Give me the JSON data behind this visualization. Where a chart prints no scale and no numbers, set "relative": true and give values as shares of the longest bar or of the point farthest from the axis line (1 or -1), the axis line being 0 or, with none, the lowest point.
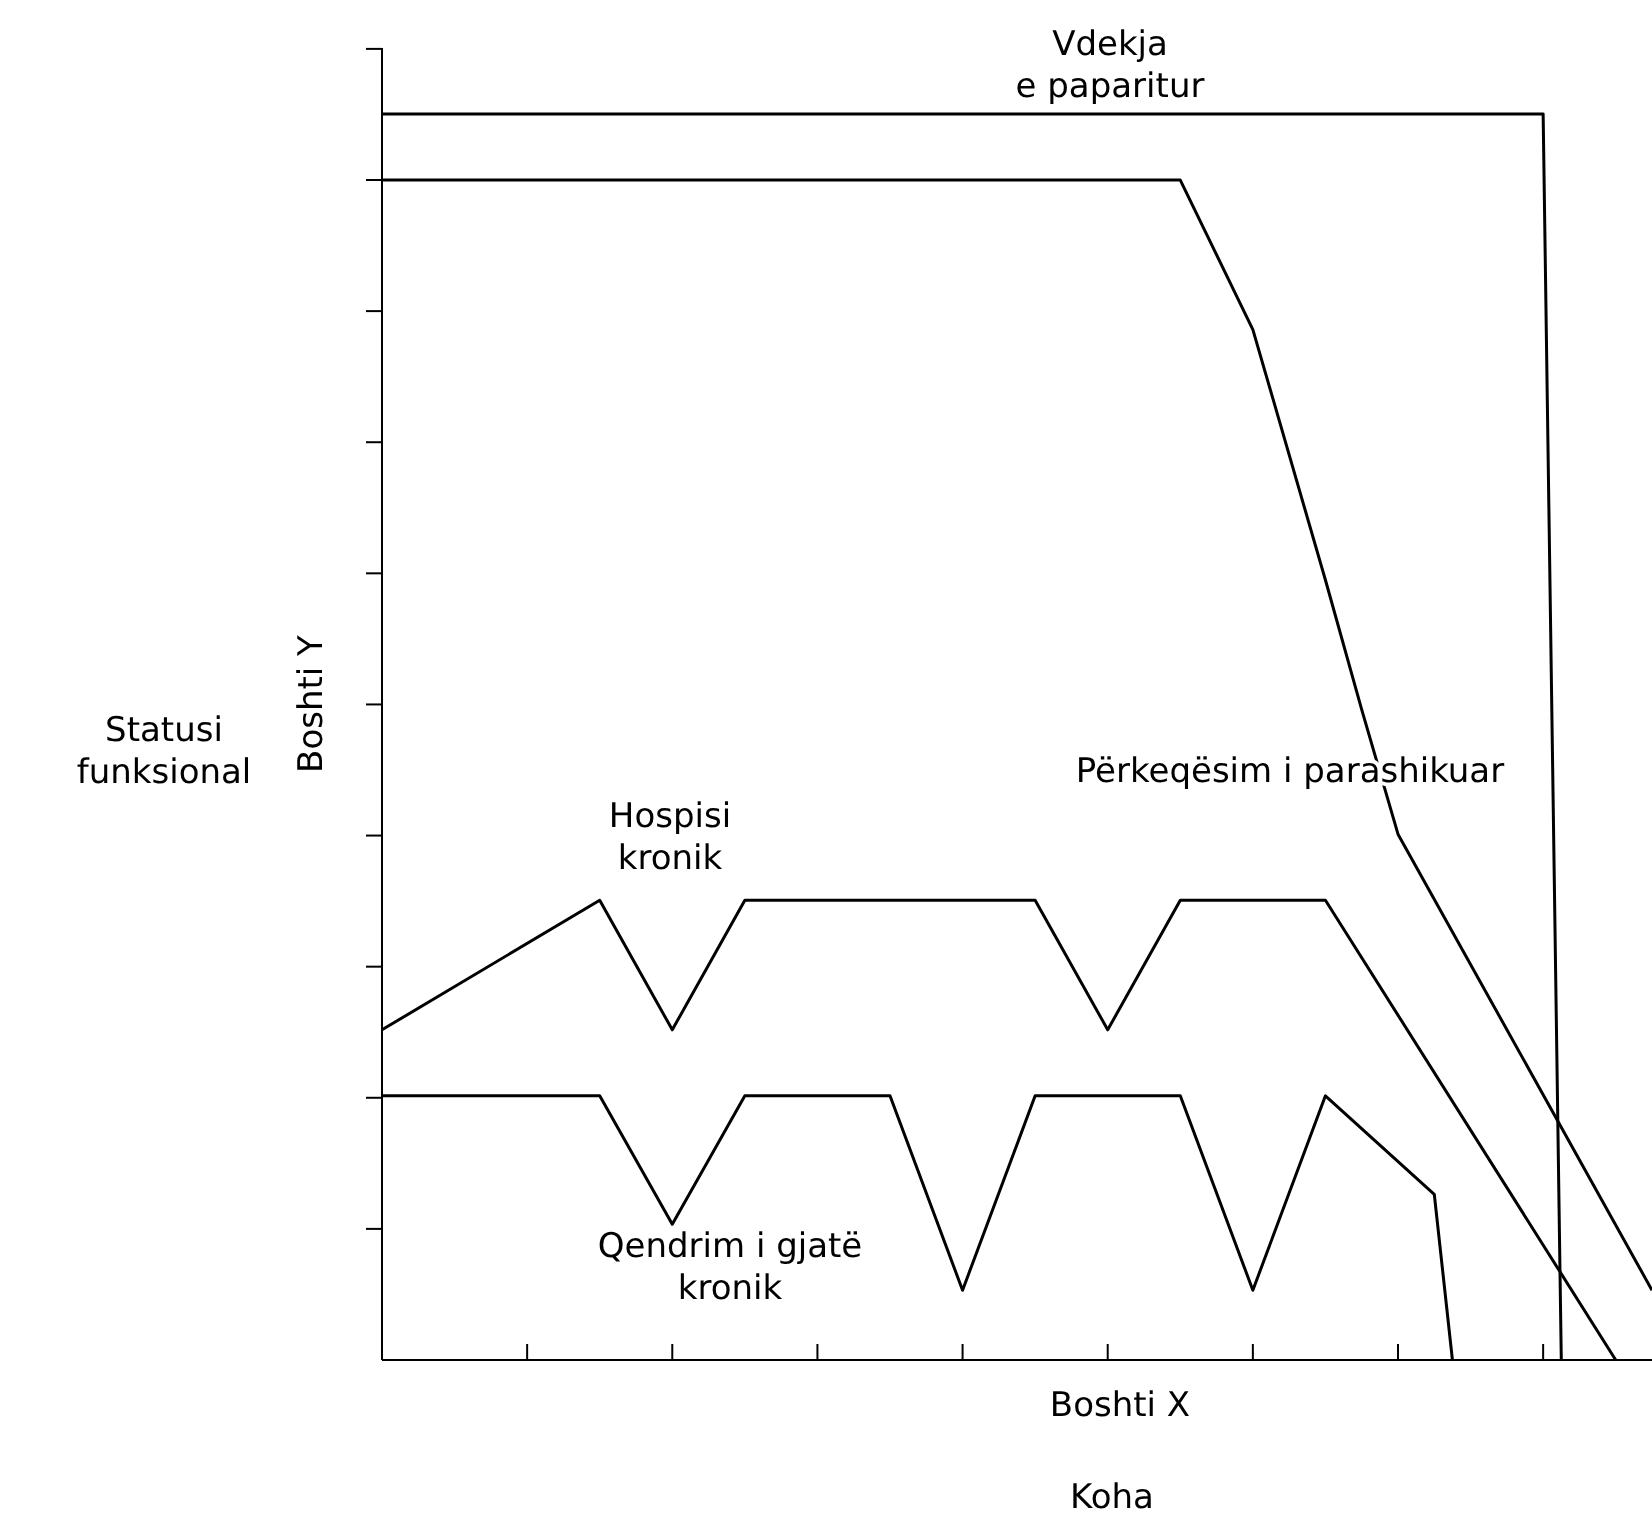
{
  "chart_data": {
    "type": "line",
    "relative": true,
    "xlabel": "Boshti X",
    "ylabel": "Boshti Y",
    "grid": false,
    "marker": "none",
    "line_style": "solid",
    "categories": [
      null,
      null,
      null,
      null,
      null,
      null,
      null,
      null,
      null,
      null,
      null,
      null,
      null,
      null,
      null,
      null,
      null,
      null,
      null,
      null,
      null,
      null,
      null,
      null,
      null,
      null,
      null,
      null,
      null,
      null,
      null,
      null,
      null,
      null,
      null,
      null,
      null,
      null,
      null,
      null,
      null,
      null,
      null,
      null,
      null,
      null,
      null,
      null,
      null,
      null,
      null,
      null,
      null,
      null,
      null,
      null,
      null,
      null,
      null,
      null,
      null,
      null,
      null,
      null,
      null,
      null,
      null,
      null,
      null,
      null,
      null
    ],
    "series": [
      {
        "color": "#000000",
        "values": [
          1,
          null,
          null,
          null,
          null,
          null,
          null,
          null,
          null,
          null,
          null,
          null,
          null,
          null,
          null,
          null,
          null,
          null,
          null,
          null,
          null,
          null,
          null,
          null,
          null,
          null,
          null,
          null,
          null,
          null,
          null,
          null,
          null,
          null,
          null,
          null,
          null,
          null,
          null,
          null,
          null,
          null,
          null,
          null,
          null,
          null,
          null,
          null,
          null,
          null,
          null,
          null,
          null,
          null,
          null,
          null,
          null,
          null,
          null,
          null,
          null,
          null,
          null,
          null,
          1,
          0,
          null,
          null,
          null,
          null,
          null
        ]
      },
      {
        "color": "#000000",
        "values": [
          0.947,
          null,
          null,
          null,
          null,
          null,
          null,
          null,
          null,
          null,
          null,
          null,
          null,
          null,
          null,
          null,
          null,
          null,
          null,
          null,
          null,
          null,
          null,
          null,
          null,
          null,
          null,
          null,
          null,
          null,
          null,
          null,
          null,
          null,
          null,
          null,
          null,
          null,
          null,
          null,
          null,
          null,
          null,
          null,
          0.947,
          null,
          null,
          null,
          0.827,
          null,
          null,
          null,
          0.626,
          null,
          0.522,
          null,
          0.422,
          null,
          null,
          null,
          null,
          null,
          null,
          null,
          null,
          null,
          null,
          null,
          null,
          null,
          0.056
        ]
      },
      {
        "color": "#000000",
        "values": [
          0.265,
          null,
          null,
          null,
          null,
          null,
          null,
          null,
          null,
          null,
          null,
          null,
          0.369,
          null,
          null,
          null,
          0.265,
          null,
          null,
          null,
          0.369,
          null,
          null,
          null,
          null,
          null,
          null,
          null,
          null,
          null,
          null,
          null,
          null,
          null,
          null,
          null,
          0.369,
          null,
          null,
          null,
          0.265,
          null,
          null,
          null,
          0.369,
          null,
          null,
          null,
          null,
          null,
          null,
          null,
          0.369,
          null,
          null,
          null,
          null,
          null,
          null,
          null,
          null,
          null,
          null,
          null,
          null,
          null,
          null,
          null,
          0,
          null,
          null
        ]
      },
      {
        "color": "#000000",
        "values": [
          0.212,
          null,
          null,
          null,
          null,
          null,
          null,
          null,
          null,
          null,
          null,
          null,
          0.212,
          null,
          null,
          null,
          0.109,
          null,
          null,
          null,
          0.212,
          null,
          null,
          null,
          null,
          null,
          null,
          null,
          0.212,
          null,
          null,
          null,
          0.056,
          null,
          null,
          null,
          0.212,
          null,
          null,
          null,
          null,
          null,
          null,
          null,
          0.212,
          null,
          null,
          null,
          0.056,
          null,
          null,
          null,
          0.212,
          null,
          null,
          null,
          null,
          null,
          0.133,
          0,
          null,
          null,
          null,
          null,
          null,
          null,
          null,
          null,
          null,
          null,
          null
        ]
      }
    ],
    "annotations": [
      "Vdekja\ne paparitur",
      "Përkeqësim i parashikuar",
      "Hospisi\nkronik",
      "Qendrim i gjatë\nkronik",
      "Koha",
      "Statusi\nfunksional"
    ]
  }
}
